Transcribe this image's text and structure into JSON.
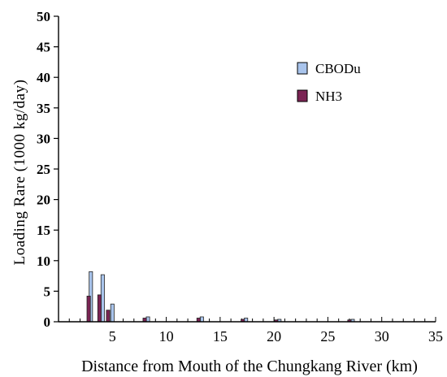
{
  "chart_data": {
    "type": "bar",
    "xlabel": "Distance from Mouth of the Chungkang River (km)",
    "ylabel": "Loading Rare (1000 kg/day)",
    "xlim": [
      0,
      35
    ],
    "ylim": [
      0,
      50
    ],
    "x_ticks": [
      "5",
      "10",
      "15",
      "20",
      "25",
      "30",
      "35"
    ],
    "y_ticks": [
      "0",
      "5",
      "10",
      "15",
      "20",
      "25",
      "30",
      "35",
      "40",
      "45",
      "50"
    ],
    "legend_position": "upper-right",
    "grid": false,
    "series": [
      {
        "name": "CBODu",
        "color": "#a9c4ec",
        "points": [
          {
            "x": 3.0,
            "y": 8.2
          },
          {
            "x": 4.1,
            "y": 7.7
          },
          {
            "x": 5.0,
            "y": 2.9
          },
          {
            "x": 8.3,
            "y": 0.8
          },
          {
            "x": 13.3,
            "y": 0.8
          },
          {
            "x": 17.4,
            "y": 0.6
          },
          {
            "x": 20.5,
            "y": 0.4
          },
          {
            "x": 27.3,
            "y": 0.4
          }
        ]
      },
      {
        "name": "NH3",
        "color": "#7b2454",
        "points": [
          {
            "x": 2.8,
            "y": 4.2
          },
          {
            "x": 3.8,
            "y": 4.4
          },
          {
            "x": 4.6,
            "y": 1.9
          },
          {
            "x": 8.0,
            "y": 0.6
          },
          {
            "x": 13.0,
            "y": 0.6
          },
          {
            "x": 17.1,
            "y": 0.4
          },
          {
            "x": 20.2,
            "y": 0.3
          },
          {
            "x": 27.0,
            "y": 0.3
          }
        ]
      }
    ]
  }
}
